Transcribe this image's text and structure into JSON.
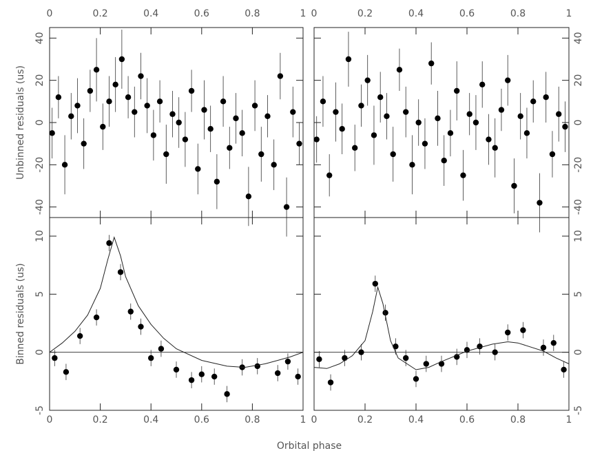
{
  "xlabel": "Orbital phase",
  "chart_data": [
    {
      "type": "scatter",
      "ylabel": "Unbinned residuals (us)",
      "xlim": [
        0,
        1
      ],
      "ylim": [
        -45,
        45
      ],
      "xticks": [
        0,
        0.2,
        0.4,
        0.6,
        0.8,
        1
      ],
      "yticks": [
        -40,
        -20,
        0,
        20,
        40
      ],
      "points": {
        "x": [
          0.01,
          0.035,
          0.06,
          0.085,
          0.11,
          0.135,
          0.16,
          0.185,
          0.21,
          0.235,
          0.26,
          0.285,
          0.31,
          0.335,
          0.36,
          0.385,
          0.41,
          0.435,
          0.46,
          0.485,
          0.51,
          0.535,
          0.56,
          0.585,
          0.61,
          0.635,
          0.66,
          0.685,
          0.71,
          0.735,
          0.76,
          0.785,
          0.81,
          0.835,
          0.86,
          0.885,
          0.91,
          0.935,
          0.96,
          0.985
        ],
        "y": [
          -5,
          12,
          -20,
          3,
          8,
          -10,
          15,
          25,
          -2,
          10,
          18,
          30,
          12,
          5,
          22,
          8,
          -6,
          10,
          -15,
          4,
          0,
          -8,
          15,
          -22,
          6,
          -3,
          -28,
          10,
          -12,
          2,
          -5,
          -35,
          8,
          -15,
          3,
          -20,
          22,
          -40,
          5,
          -10
        ],
        "yerr": [
          12,
          10,
          14,
          11,
          13,
          12,
          10,
          15,
          11,
          12,
          13,
          14,
          10,
          12,
          11,
          13,
          12,
          10,
          14,
          11,
          12,
          13,
          10,
          12,
          14,
          11,
          13,
          12,
          10,
          12,
          11,
          14,
          12,
          13,
          10,
          12,
          11,
          14,
          12,
          10
        ]
      },
      "color": "#000000"
    },
    {
      "type": "scatter",
      "xlim": [
        0,
        1
      ],
      "ylim": [
        -45,
        45
      ],
      "xticks": [
        0,
        0.2,
        0.4,
        0.6,
        0.8,
        1
      ],
      "yticks": [
        -40,
        -20,
        0,
        20,
        40
      ],
      "points": {
        "x": [
          0.01,
          0.035,
          0.06,
          0.085,
          0.11,
          0.135,
          0.16,
          0.185,
          0.21,
          0.235,
          0.26,
          0.285,
          0.31,
          0.335,
          0.36,
          0.385,
          0.41,
          0.435,
          0.46,
          0.485,
          0.51,
          0.535,
          0.56,
          0.585,
          0.61,
          0.635,
          0.66,
          0.685,
          0.71,
          0.735,
          0.76,
          0.785,
          0.81,
          0.835,
          0.86,
          0.885,
          0.91,
          0.935,
          0.96,
          0.985
        ],
        "y": [
          -8,
          10,
          -25,
          5,
          -3,
          30,
          -12,
          8,
          20,
          -6,
          12,
          3,
          -15,
          25,
          5,
          -20,
          0,
          -10,
          28,
          2,
          -18,
          -5,
          15,
          -25,
          4,
          0,
          18,
          -8,
          -12,
          6,
          20,
          -30,
          3,
          -5,
          10,
          -38,
          12,
          -15,
          4,
          -2
        ],
        "yerr": [
          11,
          12,
          10,
          14,
          12,
          13,
          11,
          10,
          12,
          14,
          12,
          11,
          13,
          10,
          12,
          14,
          11,
          12,
          10,
          13,
          12,
          11,
          14,
          12,
          10,
          13,
          11,
          12,
          14,
          10,
          12,
          13,
          11,
          12,
          10,
          14,
          12,
          11,
          13,
          12
        ]
      },
      "color": "#000000"
    },
    {
      "type": "scatter",
      "ylabel": "Binned residuals (us)",
      "xlim": [
        0,
        1
      ],
      "ylim": [
        -5,
        11.6
      ],
      "xticks": [
        0,
        0.2,
        0.4,
        0.6,
        0.8,
        1
      ],
      "yticks": [
        -5,
        0,
        5,
        10
      ],
      "zero_line": true,
      "points": {
        "x": [
          0.02,
          0.065,
          0.12,
          0.185,
          0.235,
          0.28,
          0.32,
          0.36,
          0.4,
          0.44,
          0.5,
          0.56,
          0.6,
          0.65,
          0.7,
          0.76,
          0.82,
          0.9,
          0.94,
          0.98
        ],
        "y": [
          -0.5,
          -1.7,
          1.4,
          3.0,
          9.4,
          6.9,
          3.5,
          2.2,
          -0.5,
          0.3,
          -1.5,
          -2.4,
          -1.9,
          -2.1,
          -3.6,
          -1.3,
          -1.2,
          -1.8,
          -0.8,
          -2.1
        ],
        "yerr": [
          0.7,
          0.7,
          0.7,
          0.7,
          0.7,
          0.7,
          0.7,
          0.7,
          0.7,
          0.7,
          0.7,
          0.7,
          0.7,
          0.7,
          0.7,
          0.7,
          0.7,
          0.7,
          0.7,
          0.7
        ]
      },
      "curve": {
        "x": [
          0,
          0.05,
          0.1,
          0.15,
          0.2,
          0.23,
          0.255,
          0.28,
          0.3,
          0.35,
          0.4,
          0.45,
          0.5,
          0.6,
          0.7,
          0.77,
          0.85,
          0.9,
          0.95,
          1
        ],
        "y": [
          0,
          0.8,
          1.8,
          3.2,
          5.5,
          8,
          9.9,
          8.3,
          6.5,
          4.0,
          2.4,
          1.2,
          0.3,
          -0.7,
          -1.2,
          -1.3,
          -1.0,
          -0.7,
          -0.4,
          0
        ]
      },
      "color": "#000000"
    },
    {
      "type": "scatter",
      "xlim": [
        0,
        1
      ],
      "ylim": [
        -5,
        11.6
      ],
      "xticks": [
        0,
        0.2,
        0.4,
        0.6,
        0.8,
        1
      ],
      "yticks": [
        -5,
        0,
        5,
        10
      ],
      "zero_line": true,
      "points": {
        "x": [
          0.02,
          0.065,
          0.12,
          0.185,
          0.24,
          0.28,
          0.32,
          0.36,
          0.4,
          0.44,
          0.5,
          0.56,
          0.6,
          0.65,
          0.71,
          0.76,
          0.82,
          0.9,
          0.94,
          0.98
        ],
        "y": [
          -0.6,
          -2.6,
          -0.5,
          0.0,
          5.9,
          3.4,
          0.5,
          -0.5,
          -2.3,
          -1.0,
          -1.0,
          -0.4,
          0.2,
          0.5,
          0.0,
          1.7,
          1.9,
          0.4,
          0.8,
          -1.5
        ],
        "yerr": [
          0.7,
          0.7,
          0.7,
          0.7,
          0.7,
          0.7,
          0.7,
          0.7,
          0.7,
          0.7,
          0.7,
          0.7,
          0.7,
          0.7,
          0.7,
          0.7,
          0.7,
          0.7,
          0.7,
          0.7
        ]
      },
      "curve": {
        "x": [
          0,
          0.05,
          0.1,
          0.15,
          0.2,
          0.23,
          0.25,
          0.27,
          0.3,
          0.33,
          0.4,
          0.45,
          0.5,
          0.6,
          0.7,
          0.76,
          0.8,
          0.9,
          0.95,
          1
        ],
        "y": [
          -1.3,
          -1.4,
          -1.0,
          -0.3,
          1.0,
          3.5,
          5.6,
          4.2,
          1.0,
          -0.5,
          -1.5,
          -1.3,
          -0.8,
          0.1,
          0.7,
          0.9,
          0.8,
          0.1,
          -0.5,
          -1.0
        ]
      },
      "color": "#000000"
    }
  ]
}
